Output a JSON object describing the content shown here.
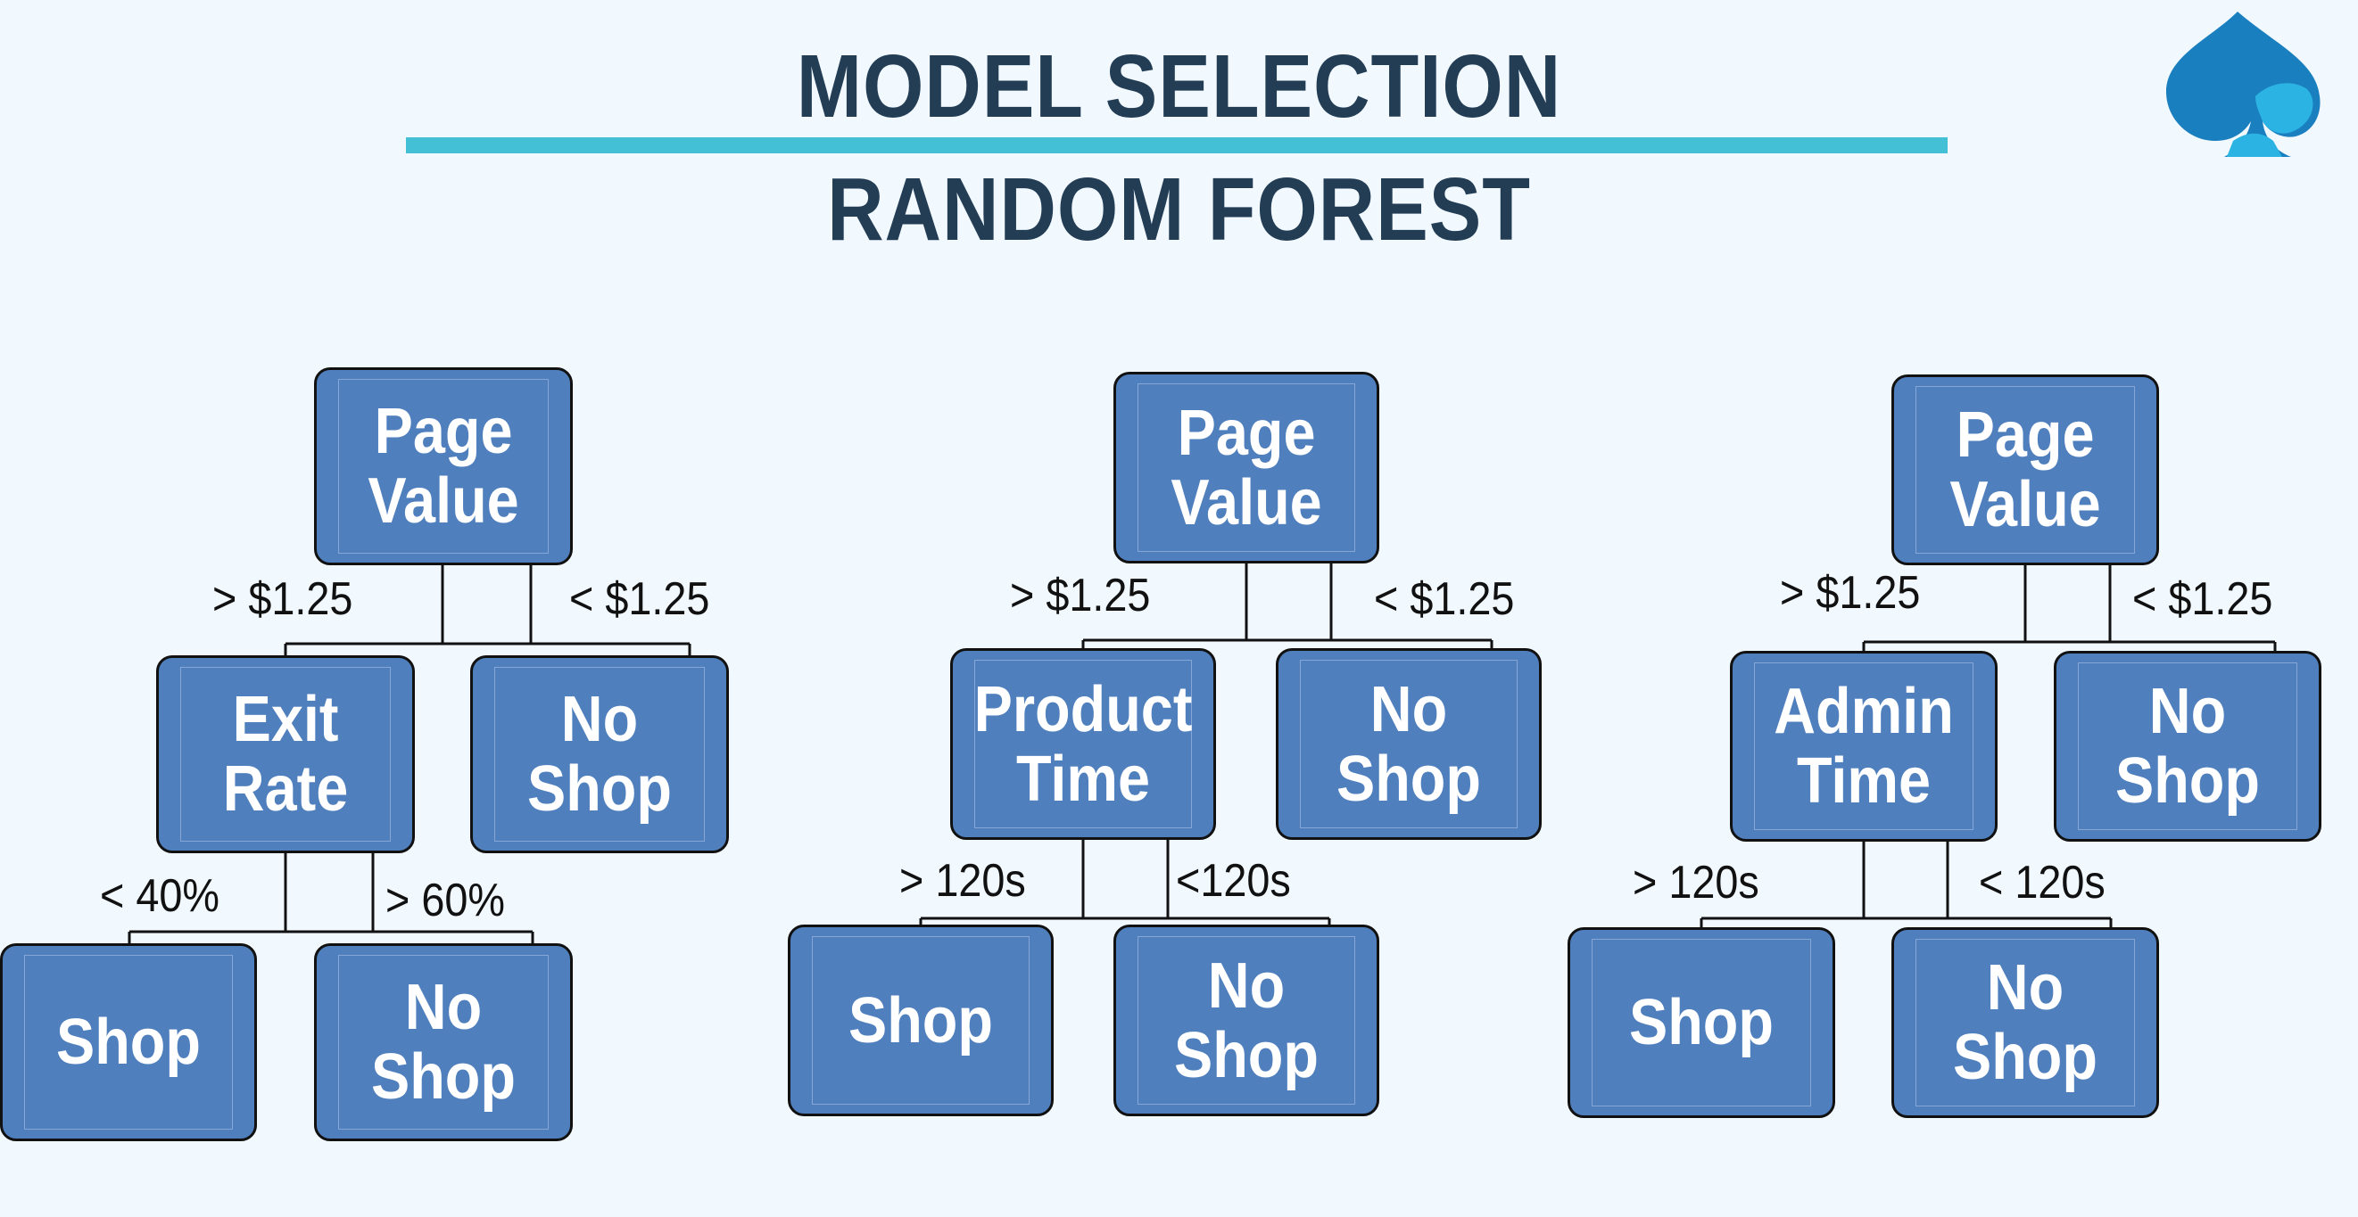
{
  "header": {
    "title": "MODEL SELECTION",
    "subtitle": "RANDOM FOREST"
  },
  "colors": {
    "background": "#f1f8fe",
    "title": "#233d55",
    "rule": "#43c0d6",
    "node_fill": "#4f7fbd",
    "logo_dark": "#1a7fbf",
    "logo_light": "#2bb3e3"
  },
  "logo": {
    "icon": "spade-drop-logo-icon"
  },
  "trees": [
    {
      "root": "Page\nValue",
      "root_left_label": "> $1.25",
      "root_right_label": "< $1.25",
      "split": "Exit\nRate",
      "right_leaf": "No\nShop",
      "split_left_label": "< 40%",
      "split_right_label": "> 60%",
      "leaf_left": "Shop",
      "leaf_right": "No\nShop"
    },
    {
      "root": "Page\nValue",
      "root_left_label": "> $1.25",
      "root_right_label": "< $1.25",
      "split": "Product\nTime",
      "right_leaf": "No\nShop",
      "split_left_label": "> 120s",
      "split_right_label": "<120s",
      "leaf_left": "Shop",
      "leaf_right": "No\nShop"
    },
    {
      "root": "Page\nValue",
      "root_left_label": "> $1.25",
      "root_right_label": "< $1.25",
      "split": "Admin\nTime",
      "right_leaf": "No\nShop",
      "split_left_label": "> 120s",
      "split_right_label": "< 120s",
      "leaf_left": "Shop",
      "leaf_right": "No\nShop"
    }
  ]
}
